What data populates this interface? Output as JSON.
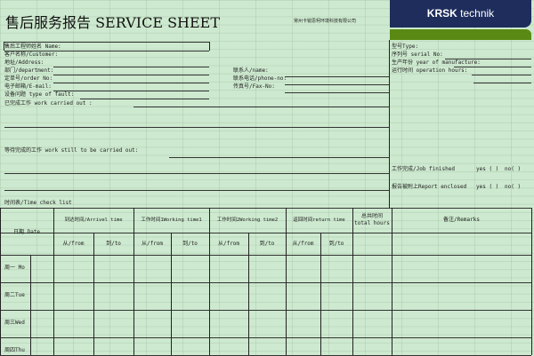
{
  "header": {
    "title": "售后服务报告 SERVICE SHEET",
    "company": "常州卡锐思柯环境科技有限公司",
    "logo_bold": "KRSK",
    "logo_light": "technik",
    "colors": {
      "navy": "#1e2d5c",
      "green": "#5a8a14",
      "background": "#cde9cf"
    }
  },
  "form_left": [
    "售后工程师姓名 Name:",
    "客户名称/Customer:",
    "地址/Address:",
    "部门/department:",
    "定单号/order No:",
    "电子邮箱/E-mail:",
    "设备问题 type of fault:",
    "已完成工作 work carried out :"
  ],
  "form_mid": [
    "联系人/name:",
    "联系电话/phone-no:",
    "传真号/Fax-No:"
  ],
  "form_right": [
    "型号Type:",
    "序列号 serial No:",
    "生产年份 year of manufacture:",
    "运行时间 operation hours:"
  ],
  "pending": "等待完成的工作 work still to be carried out:",
  "job_finished": {
    "label": "工作完成/Job finished",
    "yes": "yes ( )",
    "no": "no( )"
  },
  "report_enclosed": {
    "label": "报告被附上Report enclosed",
    "yes": "yes ( )",
    "no": "no( )"
  },
  "timesheet": {
    "title": "时间表/Time check list",
    "date": "日期 Date",
    "groups": [
      "到达时间/Arrivel time",
      "工作时间1Working time1",
      "工作时间2Working time2",
      "返回时间return time"
    ],
    "total": [
      "总共时间",
      "total hours"
    ],
    "remarks": "备注/Remarks",
    "from": "从/from",
    "to": "到/to",
    "days": [
      "周一 Mo",
      "周二Tue",
      "周三Wed",
      "周四Thu"
    ]
  }
}
